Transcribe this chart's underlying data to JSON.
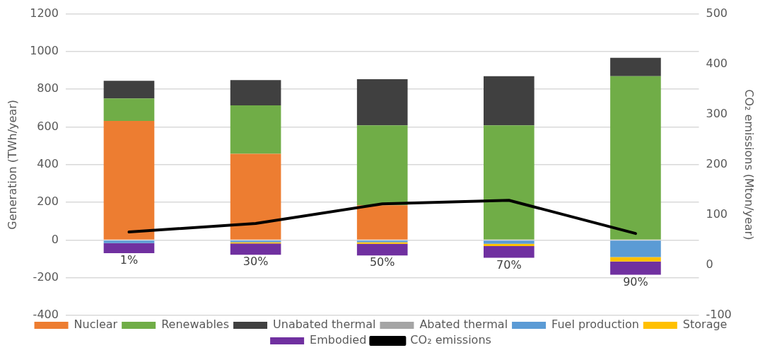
{
  "chart_data": {
    "type": "bar",
    "stacked": true,
    "categories": [
      "1%",
      "30%",
      "50%",
      "70%",
      "90%"
    ],
    "ylabel": "Generation (TWh/year)",
    "y2label": "CO₂ emissions (Mton/year)",
    "ylim": [
      -400,
      1200
    ],
    "yticks": [
      -400,
      -200,
      0,
      200,
      400,
      600,
      800,
      1000,
      1200
    ],
    "y2lim": [
      -100,
      500
    ],
    "y2ticks": [
      -100,
      0,
      100,
      200,
      300,
      400,
      500
    ],
    "grid": "y",
    "legend": "bottom",
    "series": [
      {
        "name": "Nuclear",
        "color": "#ed7d31",
        "values": [
          632,
          457,
          184,
          0,
          0
        ]
      },
      {
        "name": "Renewables",
        "color": "#70ad47",
        "values": [
          119,
          257,
          424,
          608,
          869
        ]
      },
      {
        "name": "Unabated thermal",
        "color": "#404040",
        "values": [
          94,
          135,
          245,
          261,
          98
        ]
      },
      {
        "name": "Abated thermal",
        "color": "#a5a5a5",
        "values": [
          0,
          0,
          0,
          0,
          0
        ]
      },
      {
        "name": "Fuel production",
        "color": "#5b9bd5",
        "values": [
          -16,
          -12,
          -12,
          -20,
          -90
        ]
      },
      {
        "name": "Storage",
        "color": "#ffc000",
        "values": [
          null,
          -6,
          -8,
          -12,
          -24
        ]
      },
      {
        "name": "Embodied",
        "color": "#7030a0",
        "values": [
          -54,
          -60,
          -62,
          -62,
          -70
        ]
      },
      {
        "name": "CO₂ emissions",
        "type": "line",
        "axis": "y2",
        "color": "#000000",
        "values": [
          66,
          83,
          122,
          129,
          63
        ]
      }
    ]
  }
}
